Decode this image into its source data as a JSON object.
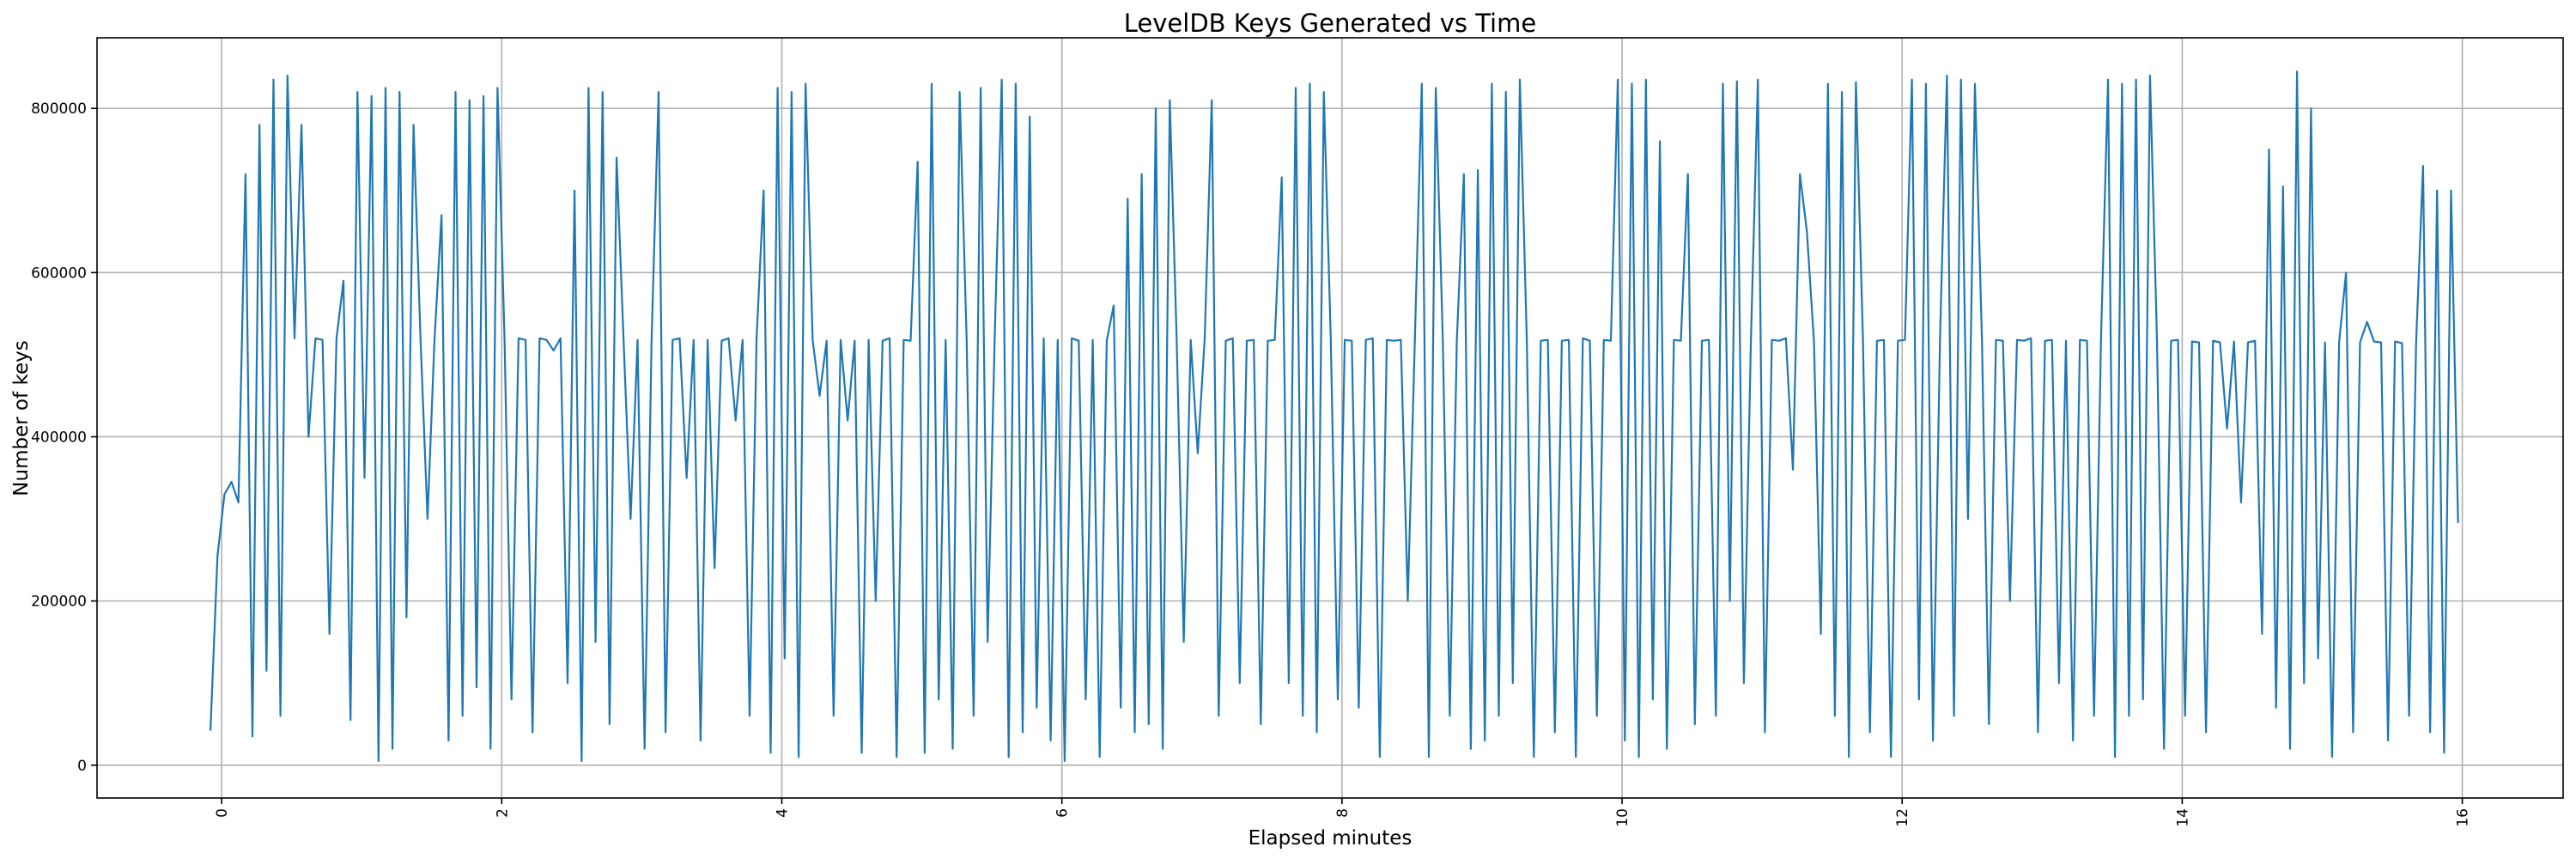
{
  "chart_data": {
    "type": "line",
    "title": "LevelDB Keys Generated vs Time",
    "xlabel": "Elapsed minutes",
    "ylabel": "Number of keys",
    "xlim": [
      -0.89,
      16.72
    ],
    "ylim": [
      -40000,
      886000
    ],
    "xticks": [
      0,
      2,
      4,
      6,
      8,
      10,
      12,
      14,
      16
    ],
    "xtick_labels": [
      "0",
      "2",
      "4",
      "6",
      "8",
      "10",
      "12",
      "14",
      "16"
    ],
    "yticks": [
      0,
      200000,
      400000,
      600000,
      800000
    ],
    "ytick_labels": [
      "0",
      "200000",
      "400000",
      "600000",
      "800000"
    ],
    "grid": true,
    "series": [
      {
        "name": "keys",
        "color": "#1f77b4",
        "x_start": -0.08,
        "x_step": 0.05,
        "values": [
          42000,
          255000,
          330000,
          345000,
          320000,
          720000,
          35000,
          780000,
          115000,
          835000,
          60000,
          840000,
          520000,
          780000,
          400000,
          520000,
          518000,
          160000,
          520000,
          590000,
          55000,
          820000,
          350000,
          815000,
          5000,
          825000,
          20000,
          820000,
          180000,
          780000,
          520000,
          300000,
          518000,
          670000,
          30000,
          820000,
          60000,
          810000,
          95000,
          815000,
          20000,
          825000,
          518000,
          80000,
          520000,
          518000,
          40000,
          520000,
          518000,
          505000,
          520000,
          100000,
          700000,
          5000,
          825000,
          150000,
          820000,
          50000,
          740000,
          518000,
          300000,
          518000,
          20000,
          517000,
          820000,
          40000,
          518000,
          520000,
          350000,
          518000,
          30000,
          518000,
          240000,
          517000,
          520000,
          420000,
          518000,
          60000,
          520000,
          700000,
          15000,
          825000,
          130000,
          820000,
          10000,
          830000,
          518000,
          450000,
          517000,
          60000,
          518000,
          420000,
          517000,
          15000,
          518000,
          200000,
          517000,
          520000,
          10000,
          518000,
          517000,
          735000,
          15000,
          830000,
          80000,
          518000,
          20000,
          820000,
          517000,
          60000,
          825000,
          150000,
          520000,
          835000,
          10000,
          830000,
          40000,
          790000,
          70000,
          520000,
          30000,
          518000,
          5000,
          520000,
          517000,
          80000,
          518000,
          10000,
          517000,
          560000,
          70000,
          690000,
          40000,
          720000,
          50000,
          800000,
          20000,
          810000,
          517000,
          150000,
          518000,
          380000,
          520000,
          810000,
          60000,
          517000,
          520000,
          100000,
          517000,
          518000,
          50000,
          517000,
          518000,
          716000,
          100000,
          825000,
          60000,
          830000,
          40000,
          820000,
          520000,
          80000,
          518000,
          517000,
          70000,
          518000,
          520000,
          10000,
          518000,
          517000,
          518000,
          200000,
          517000,
          830000,
          10000,
          825000,
          518000,
          60000,
          517000,
          720000,
          20000,
          725000,
          30000,
          830000,
          60000,
          820000,
          100000,
          835000,
          518000,
          10000,
          517000,
          518000,
          40000,
          517000,
          518000,
          10000,
          520000,
          517000,
          60000,
          518000,
          517000,
          835000,
          30000,
          830000,
          10000,
          835000,
          80000,
          760000,
          20000,
          518000,
          517000,
          720000,
          50000,
          517000,
          518000,
          60000,
          830000,
          200000,
          833000,
          100000,
          517000,
          835000,
          40000,
          518000,
          517000,
          520000,
          360000,
          720000,
          650000,
          517000,
          160000,
          830000,
          60000,
          820000,
          10000,
          832000,
          518000,
          40000,
          517000,
          518000,
          10000,
          517000,
          518000,
          835000,
          80000,
          830000,
          30000,
          518000,
          840000,
          60000,
          835000,
          300000,
          830000,
          517000,
          50000,
          518000,
          517000,
          200000,
          518000,
          517000,
          520000,
          40000,
          517000,
          518000,
          100000,
          517000,
          30000,
          518000,
          517000,
          60000,
          518000,
          835000,
          10000,
          830000,
          60000,
          835000,
          80000,
          840000,
          518000,
          20000,
          517000,
          518000,
          60000,
          516000,
          515000,
          40000,
          517000,
          515000,
          410000,
          516000,
          320000,
          515000,
          517000,
          160000,
          750000,
          70000,
          705000,
          20000,
          845000,
          100000,
          800000,
          130000,
          515000,
          10000,
          515000,
          600000,
          40000,
          515000,
          540000,
          516000,
          515000,
          30000,
          516000,
          514000,
          60000,
          515000,
          730000,
          40000,
          700000,
          15000,
          700000,
          295000
        ]
      }
    ]
  }
}
